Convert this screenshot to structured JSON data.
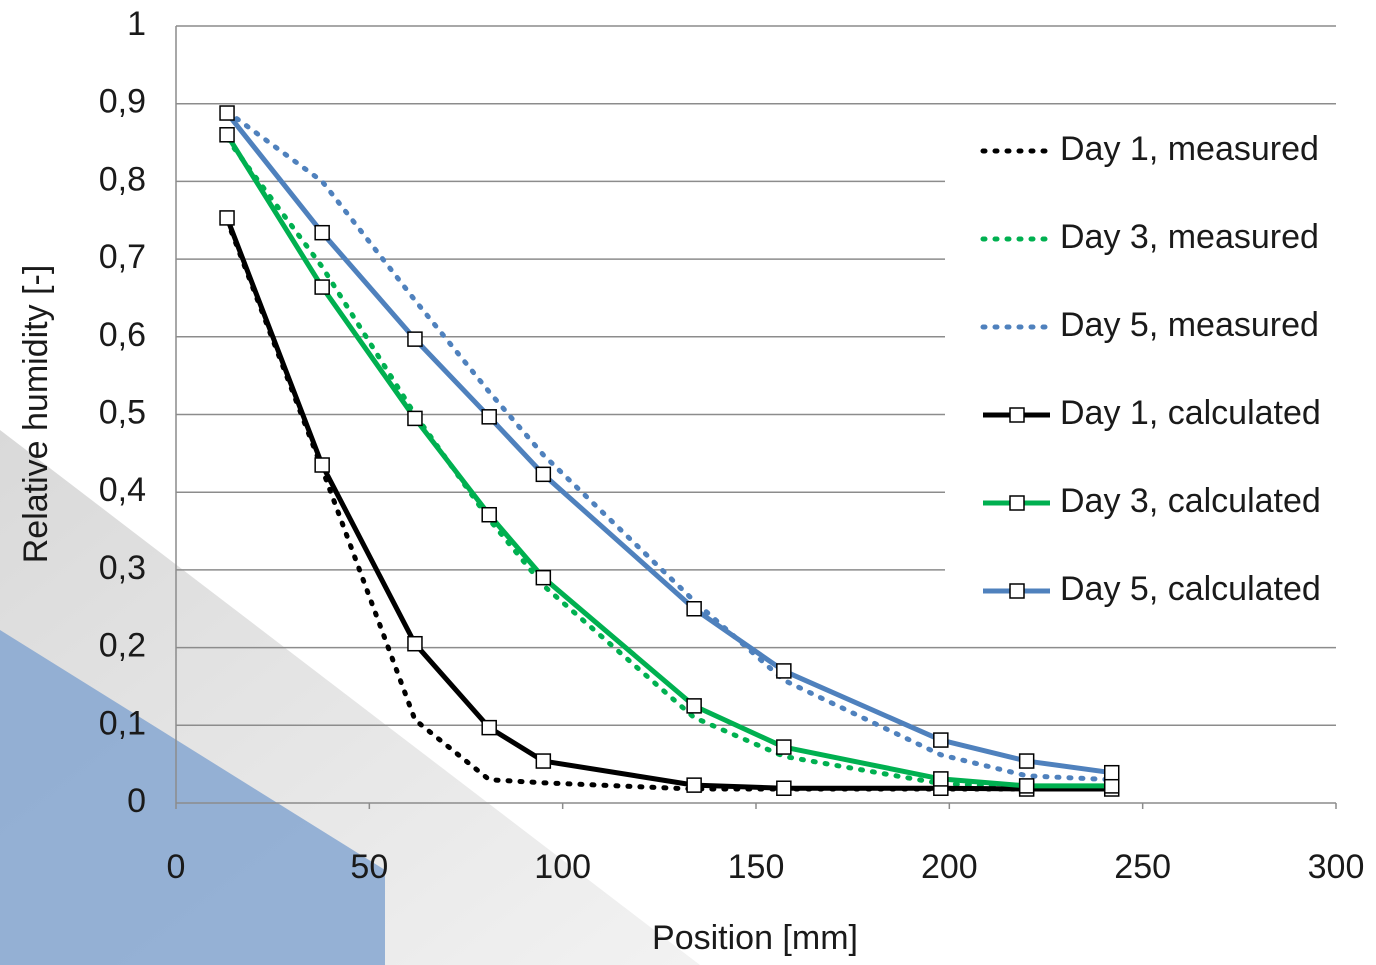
{
  "chart_data": {
    "type": "line",
    "x_label": "Position [mm]",
    "y_label": "Relative humidity [-]",
    "xlim": [
      0,
      300
    ],
    "xticks": [
      0,
      50,
      100,
      150,
      200,
      250,
      300
    ],
    "ylim": [
      0,
      1
    ],
    "yticks": [
      0,
      {
        "value": 0.1,
        "label": "0,1"
      },
      {
        "value": 0.2,
        "label": "0,2"
      },
      {
        "value": 0.3,
        "label": "0,3"
      },
      {
        "value": 0.4,
        "label": "0,4"
      },
      {
        "value": 0.5,
        "label": "0,5"
      },
      {
        "value": 0.6,
        "label": "0,6"
      },
      {
        "value": 0.7,
        "label": "0,7"
      },
      {
        "value": 0.8,
        "label": "0,8"
      },
      {
        "value": 0.9,
        "label": "0,9"
      },
      1
    ],
    "grid": true,
    "legend": "right",
    "x": [
      13.2,
      37.8,
      61.8,
      81,
      95,
      134,
      157.2,
      197.8,
      220,
      242
    ],
    "series": [
      {
        "name": "Day 1, measured",
        "color": "#000000",
        "style": "dotted",
        "values": [
          0.75,
          0.43,
          0.107,
          0.03,
          0.026,
          0.018,
          0.018,
          0.018,
          0.018,
          0.018
        ]
      },
      {
        "name": "Day 3, measured",
        "color": "#00b050",
        "style": "dotted",
        "values": [
          0.855,
          0.69,
          0.5,
          0.365,
          0.28,
          0.11,
          0.06,
          0.025,
          0.02,
          0.02
        ]
      },
      {
        "name": "Day 5, measured",
        "color": "#4f81bd",
        "style": "dotted",
        "values": [
          0.89,
          0.8,
          0.647,
          0.529,
          0.448,
          0.26,
          0.158,
          0.062,
          0.035,
          0.03
        ]
      },
      {
        "name": "Day 1, calculated",
        "color": "#000000",
        "style": "solid",
        "values": [
          0.753,
          0.435,
          0.205,
          0.097,
          0.054,
          0.023,
          0.019,
          0.019,
          0.018,
          0.018
        ]
      },
      {
        "name": "Day 3, calculated",
        "color": "#00b050",
        "style": "solid",
        "values": [
          0.86,
          0.664,
          0.495,
          0.371,
          0.29,
          0.125,
          0.072,
          0.031,
          0.022,
          0.022
        ]
      },
      {
        "name": "Day 5, calculated",
        "color": "#4f81bd",
        "style": "solid",
        "values": [
          0.888,
          0.734,
          0.597,
          0.497,
          0.423,
          0.25,
          0.17,
          0.081,
          0.054,
          0.039
        ]
      }
    ]
  }
}
